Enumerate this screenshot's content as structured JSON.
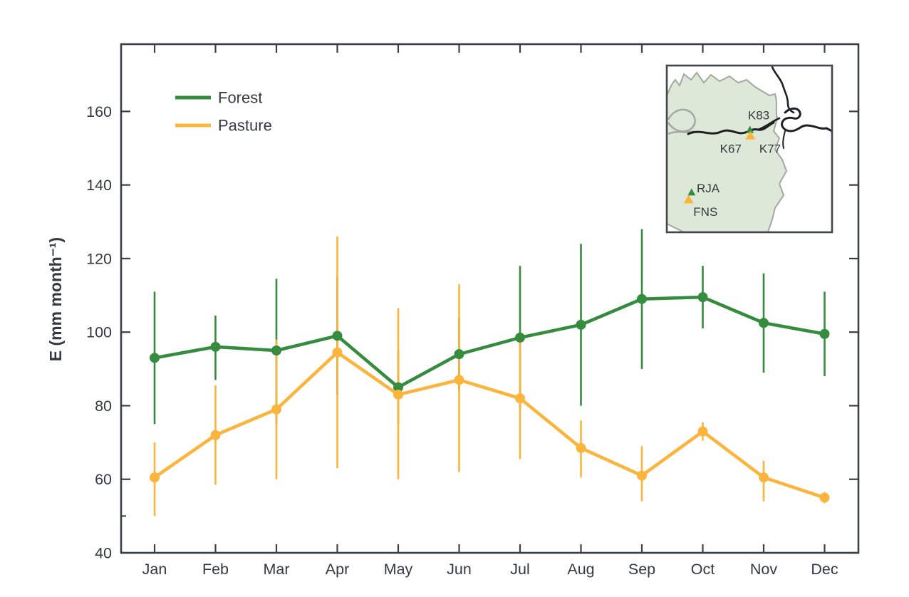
{
  "figure": {
    "background": "#ffffff",
    "text_color": "#35393f",
    "axis_color": "#3a3e45"
  },
  "legend": {
    "items": [
      {
        "label": "Forest",
        "color": "#358b3e"
      },
      {
        "label": "Pasture",
        "color": "#fbb43c"
      }
    ]
  },
  "inset_map": {
    "land_fill": "#dde8d9",
    "boundary_color": "#a3a8a2",
    "river_color": "#1e2022",
    "border_color": "#41454c",
    "sites": [
      {
        "label": "K83",
        "type": "forest",
        "marker": "triangle",
        "mx": 0.503,
        "my": 0.383,
        "lx": 0.556,
        "ly": 0.3
      },
      {
        "label": "K77",
        "type": "pasture",
        "marker": "triangle",
        "mx": 0.506,
        "my": 0.418,
        "lx": 0.625,
        "ly": 0.5
      },
      {
        "label": "K67",
        "type": "forest",
        "marker": "none",
        "mx": 0.503,
        "my": 0.383,
        "lx": 0.387,
        "ly": 0.5
      },
      {
        "label": "RJA",
        "type": "forest",
        "marker": "triangle",
        "mx": 0.15,
        "my": 0.758,
        "lx": 0.25,
        "ly": 0.737
      },
      {
        "label": "FNS",
        "type": "pasture",
        "marker": "triangle",
        "mx": 0.132,
        "my": 0.801,
        "lx": 0.234,
        "ly": 0.878
      }
    ]
  },
  "chart_data": {
    "type": "line",
    "title": "",
    "xlabel": "",
    "ylabel": "E (mm month⁻¹)",
    "categories": [
      "Jan",
      "Feb",
      "Mar",
      "Apr",
      "May",
      "Jun",
      "Jul",
      "Aug",
      "Sep",
      "Oct",
      "Nov",
      "Dec"
    ],
    "ylim": [
      40,
      178
    ],
    "yticks": [
      40,
      60,
      80,
      100,
      120,
      140,
      160
    ],
    "yticks_minor": [
      50
    ],
    "grid": false,
    "legend_position": "upper-left-inside",
    "error_bars": true,
    "series": [
      {
        "name": "Forest",
        "color": "#358b3e",
        "values": [
          93,
          96,
          95,
          99,
          85,
          94,
          98.5,
          102,
          109,
          109.5,
          102.5,
          99.5
        ],
        "err_low": [
          75,
          87,
          75,
          83,
          75,
          84,
          79,
          80,
          90,
          101,
          89,
          88
        ],
        "err_high": [
          111,
          104.5,
          114.5,
          115,
          95,
          104,
          118,
          124,
          128,
          118,
          116,
          111
        ]
      },
      {
        "name": "Pasture",
        "color": "#fbb43c",
        "values": [
          60.5,
          72,
          79,
          94.5,
          83,
          87,
          82,
          68.5,
          61,
          73,
          60.5,
          55
        ],
        "err_low": [
          50,
          58.5,
          60,
          63,
          60,
          62,
          65.5,
          60.5,
          54,
          70.5,
          54,
          53.5
        ],
        "err_high": [
          70,
          85.5,
          98,
          126,
          106.5,
          113,
          98,
          76,
          69,
          75.5,
          65,
          56.5
        ]
      }
    ]
  }
}
